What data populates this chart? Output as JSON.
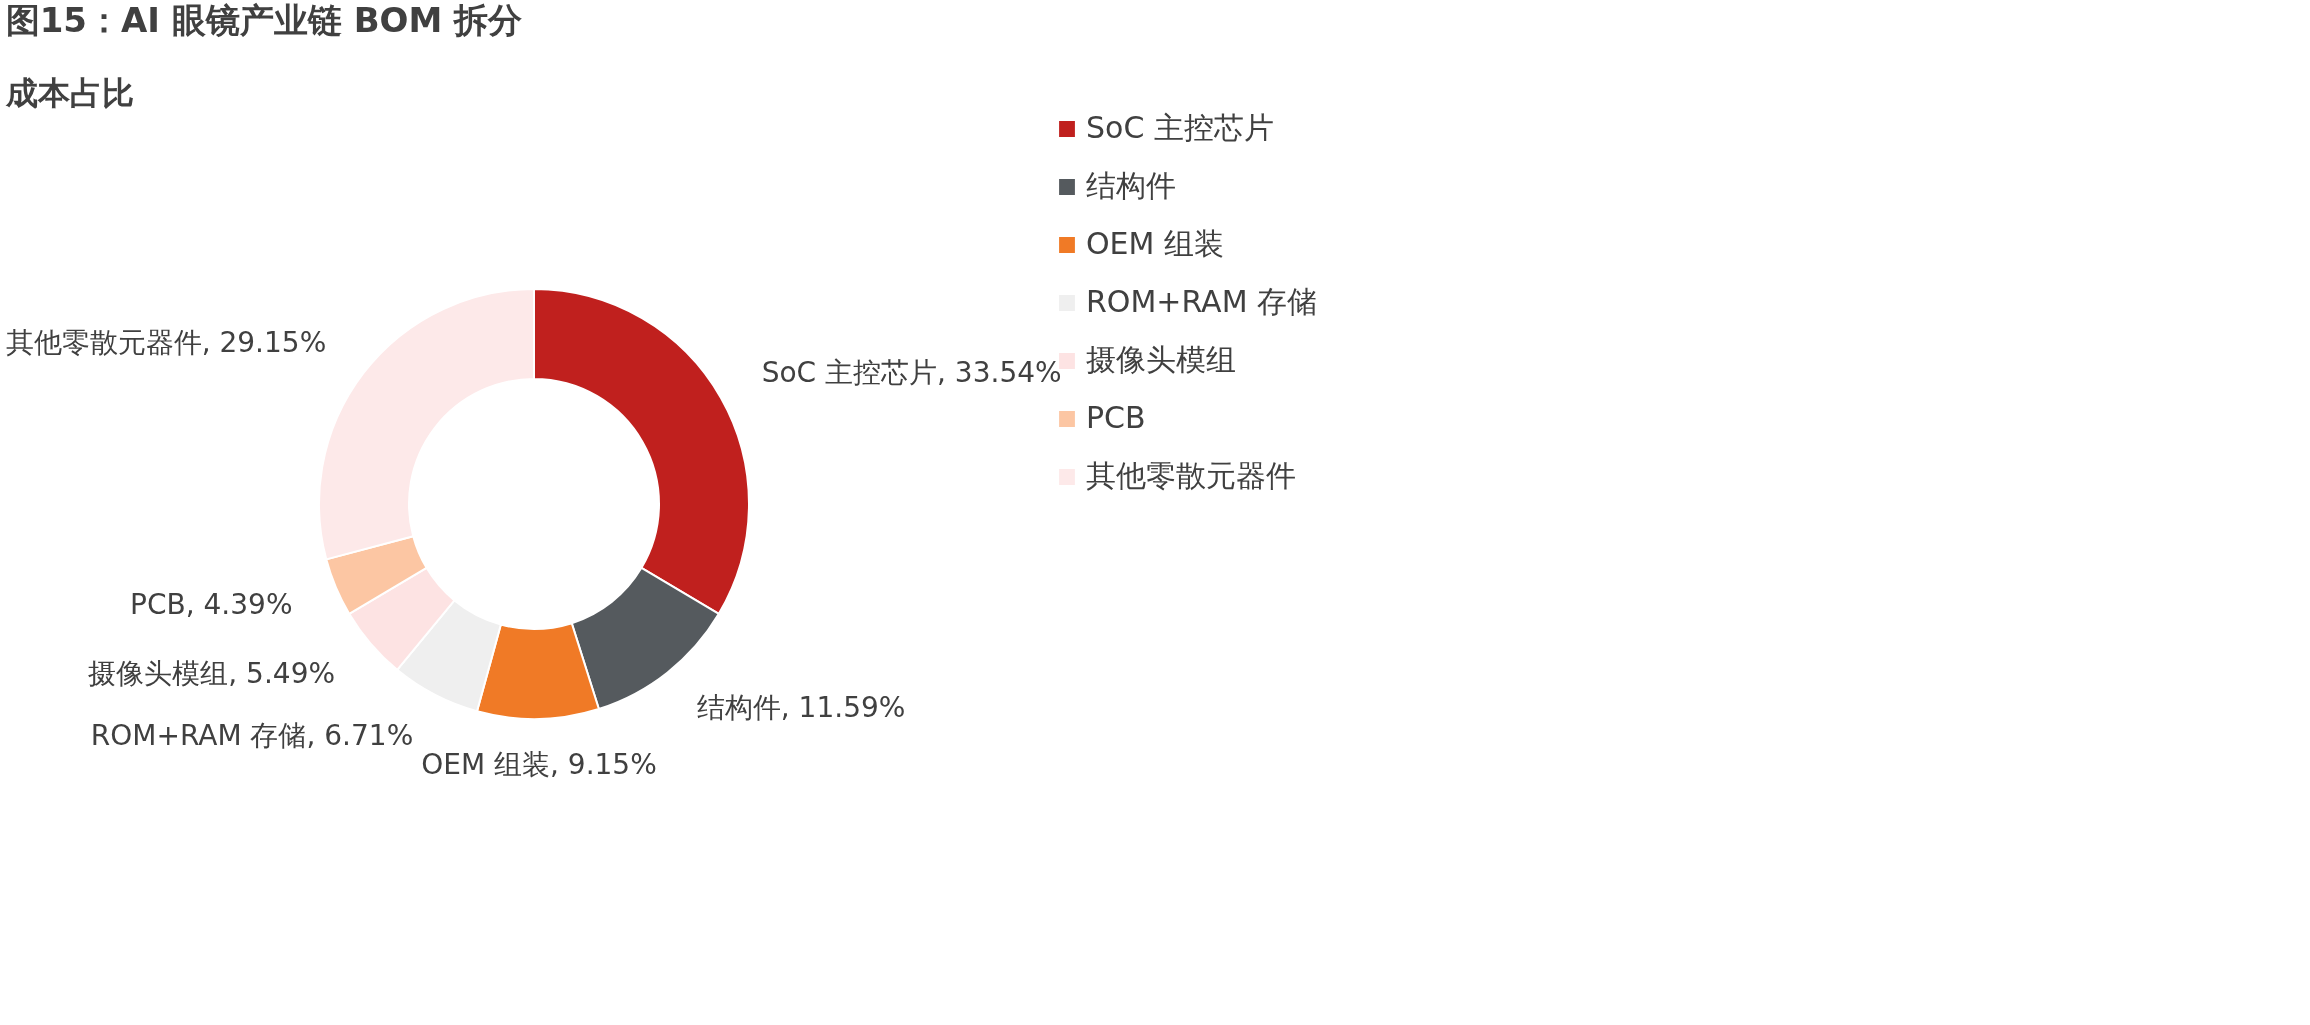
{
  "chart_data": {
    "type": "donut",
    "title": "图15：AI 眼镜产业链 BOM 拆分",
    "subtitle": "成本占比",
    "categories": [
      "SoC 主控芯片",
      "结构件",
      "OEM 组装",
      "ROM+RAM 存储",
      "摄像头模组",
      "PCB",
      "其他零散元器件"
    ],
    "values": [
      33.54,
      11.59,
      9.15,
      6.71,
      5.49,
      4.39,
      29.15
    ],
    "colors": [
      "#c0201e",
      "#555a5e",
      "#f07a26",
      "#efefef",
      "#fde3e3",
      "#fcc6a3",
      "#fde9e9"
    ],
    "value_labels": [
      "SoC 主控芯片, 33.54%",
      "结构件, 11.59%",
      "OEM 组装, 9.15%",
      "ROM+RAM 存储, 6.71%",
      "摄像头模组, 5.49%",
      "PCB, 4.39%",
      "其他零散元器件, 29.15%"
    ],
    "legend": "right"
  }
}
